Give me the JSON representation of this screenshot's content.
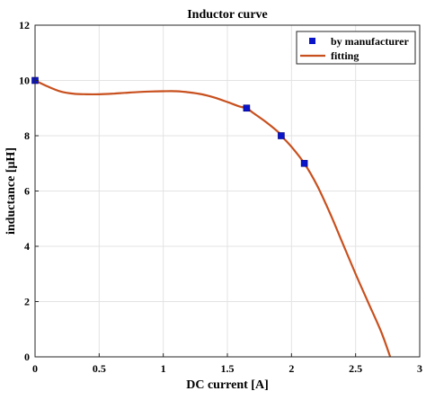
{
  "chart_data": {
    "type": "scatter",
    "title": "Inductor curve",
    "xlabel": "DC current [A]",
    "ylabel": "inductance [μH]",
    "xlim": [
      0,
      3
    ],
    "ylim": [
      0,
      12
    ],
    "xticks": [
      0,
      0.5,
      1,
      1.5,
      2,
      2.5,
      3
    ],
    "xtick_labels": [
      "0",
      "0.5",
      "1",
      "1.5",
      "2",
      "2.5",
      "3"
    ],
    "yticks": [
      0,
      2,
      4,
      6,
      8,
      10,
      12
    ],
    "ytick_labels": [
      "0",
      "2",
      "4",
      "6",
      "8",
      "10",
      "12"
    ],
    "grid": true,
    "legend_position": "top-right",
    "series": [
      {
        "name": "by manufacturer",
        "kind": "markers",
        "marker": "square",
        "color": "#0a14c8",
        "x": [
          0,
          1.65,
          1.92,
          2.1
        ],
        "y": [
          10,
          9,
          8,
          7
        ]
      },
      {
        "name": "fitting",
        "kind": "line",
        "color": "#c8501e",
        "x": [
          0,
          0.1,
          0.2,
          0.3,
          0.4,
          0.5,
          0.6,
          0.7,
          0.8,
          0.9,
          1.0,
          1.1,
          1.2,
          1.3,
          1.4,
          1.5,
          1.6,
          1.65,
          1.7,
          1.8,
          1.9,
          1.92,
          2.0,
          2.1,
          2.2,
          2.3,
          2.4,
          2.5,
          2.6,
          2.7,
          2.77
        ],
        "y": [
          10.0,
          9.78,
          9.6,
          9.52,
          9.5,
          9.5,
          9.52,
          9.55,
          9.58,
          9.6,
          9.61,
          9.61,
          9.57,
          9.5,
          9.38,
          9.22,
          9.05,
          9.0,
          8.83,
          8.5,
          8.12,
          8.0,
          7.6,
          7.0,
          6.2,
          5.2,
          4.1,
          3.0,
          1.95,
          0.9,
          0.0
        ]
      }
    ]
  }
}
